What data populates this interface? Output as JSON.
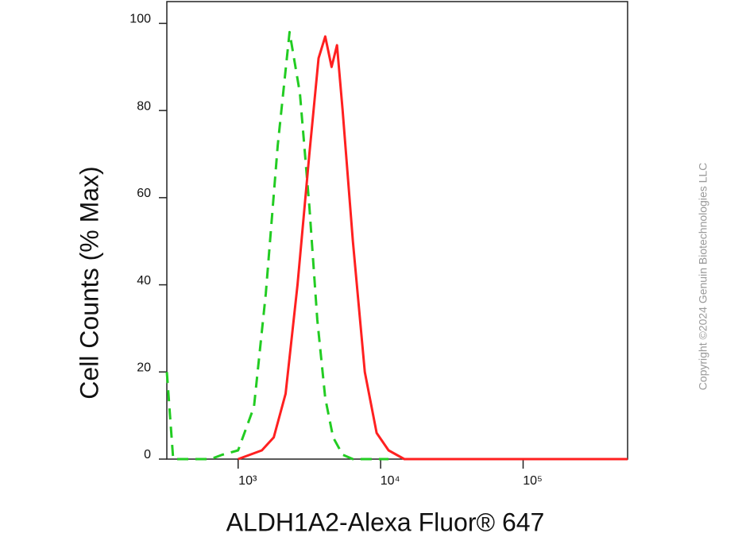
{
  "chart_data": {
    "type": "line",
    "ylabel": "Cell Counts (% Max)",
    "xlabel": "ALDH1A2-Alexa Fluor® 647",
    "annotation": "Copyright ©2024 Genuin Biotechnologies LLC",
    "xscale": "log",
    "xlim": [
      316,
      541000
    ],
    "ylim": [
      0,
      105
    ],
    "xticks": [
      {
        "value": 1000,
        "label": "10³"
      },
      {
        "value": 10000,
        "label": "10⁴"
      },
      {
        "value": 100000,
        "label": "10⁵"
      }
    ],
    "yticks": [
      0,
      20,
      40,
      60,
      80,
      100
    ],
    "series": [
      {
        "color": "#22cc22",
        "dash": true,
        "x": [
          316,
          350,
          640,
          774,
          1000,
          1292,
          1565,
          1896,
          2297,
          2712,
          3162,
          3594,
          4084,
          4642,
          5412,
          6390,
          11370
        ],
        "values": [
          20,
          0,
          0,
          1,
          2,
          12,
          38,
          72,
          98,
          84,
          58,
          32,
          14,
          5,
          1,
          0,
          0
        ]
      },
      {
        "color": "#ff2020",
        "dash": false,
        "x": [
          1000,
          1468,
          1778,
          2154,
          2610,
          3162,
          3670,
          4084,
          4531,
          4942,
          5412,
          6390,
          7743,
          9380,
          11370,
          14680,
          541000
        ],
        "values": [
          0,
          2,
          5,
          15,
          40,
          70,
          92,
          97,
          90,
          95,
          80,
          50,
          20,
          6,
          2,
          0,
          0
        ]
      }
    ]
  }
}
